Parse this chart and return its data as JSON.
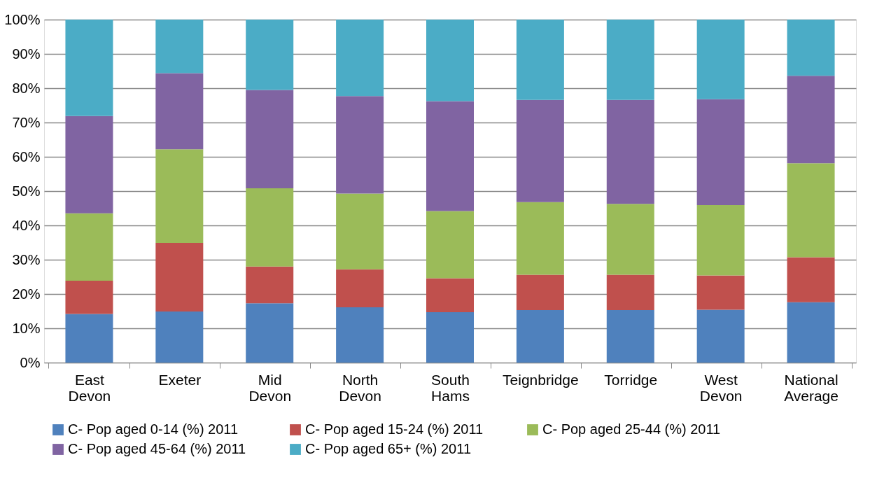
{
  "chart_data": {
    "type": "bar",
    "stacked": true,
    "categories": [
      "East Devon",
      "Exeter",
      "Mid Devon",
      "North Devon",
      "South Hams",
      "Teignbridge",
      "Torridge",
      "West Devon",
      "National Average"
    ],
    "series": [
      {
        "name": "C- Pop aged 0-14 (%) 2011",
        "color": "#4f81bd",
        "values": [
          14.2,
          14.9,
          17.3,
          16.1,
          14.7,
          15.3,
          15.3,
          15.4,
          17.6
        ]
      },
      {
        "name": "C- Pop aged 15-24 (%) 2011",
        "color": "#c0504d",
        "values": [
          9.7,
          20.0,
          10.7,
          11.1,
          9.9,
          10.3,
          10.3,
          10.0,
          13.1
        ]
      },
      {
        "name": "C- Pop aged 25-44 (%) 2011",
        "color": "#9bbb59",
        "values": [
          19.6,
          27.3,
          22.8,
          22.1,
          19.6,
          21.2,
          20.7,
          20.5,
          27.4
        ]
      },
      {
        "name": "C- Pop aged 45-64 (%) 2011",
        "color": "#8064a2",
        "values": [
          28.4,
          22.2,
          28.7,
          28.4,
          32.0,
          29.8,
          30.3,
          30.9,
          25.5
        ]
      },
      {
        "name": "C- Pop aged 65+ (%) 2011",
        "color": "#4bacc6",
        "values": [
          28.1,
          15.6,
          20.5,
          22.3,
          23.8,
          23.4,
          23.4,
          23.2,
          16.4
        ]
      }
    ],
    "ylim": [
      0,
      100
    ],
    "yticks": [
      {
        "value": 0,
        "label": "0%"
      },
      {
        "value": 10,
        "label": "10%"
      },
      {
        "value": 20,
        "label": "20%"
      },
      {
        "value": 30,
        "label": "30%"
      },
      {
        "value": 40,
        "label": "40%"
      },
      {
        "value": 50,
        "label": "50%"
      },
      {
        "value": 60,
        "label": "60%"
      },
      {
        "value": 70,
        "label": "70%"
      },
      {
        "value": 80,
        "label": "80%"
      },
      {
        "value": 90,
        "label": "90%"
      },
      {
        "value": 100,
        "label": "100%"
      }
    ],
    "grid": "y",
    "legend": "bottom"
  }
}
